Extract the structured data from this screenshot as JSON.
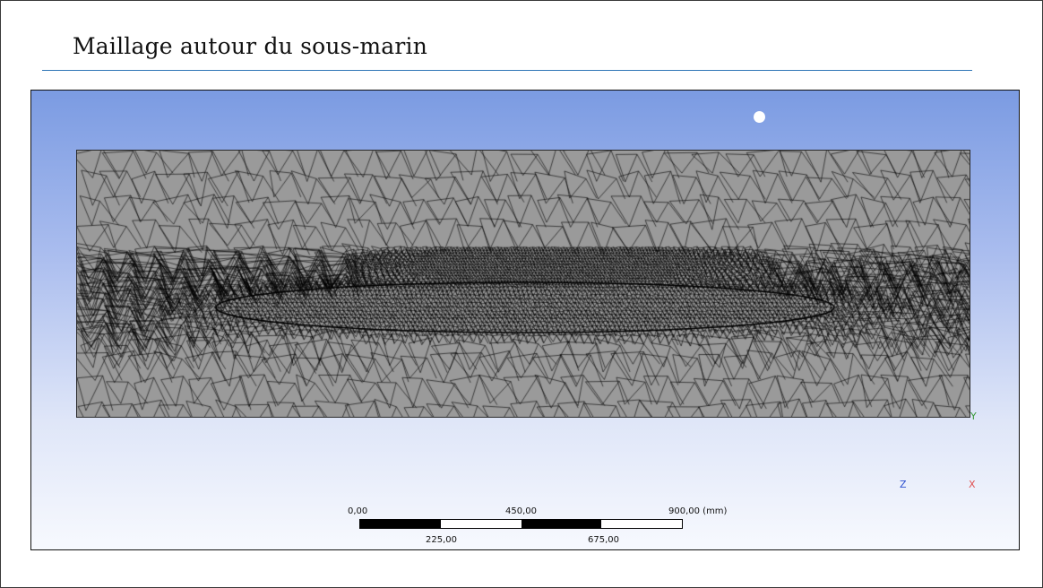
{
  "slide": {
    "title": "Maillage autour du sous-marin",
    "rule_color": "#2e75b6"
  },
  "viewport": {
    "background_top": "#7b9be2",
    "background_bottom": "#f7f9fe",
    "mesh_fill": "#9a9a9a",
    "mesh_line_color": "#000000"
  },
  "triad": {
    "y_label": "Y",
    "z_label": "Z",
    "x_label": "X",
    "y_color": "#3a9a3a",
    "z_color": "#2b4fcf",
    "x_color": "#e05050"
  },
  "scale_bar": {
    "label_0": "0,00",
    "label_450": "450,00",
    "label_900": "900,00 (mm)",
    "label_225": "225,00",
    "label_675": "675,00"
  }
}
